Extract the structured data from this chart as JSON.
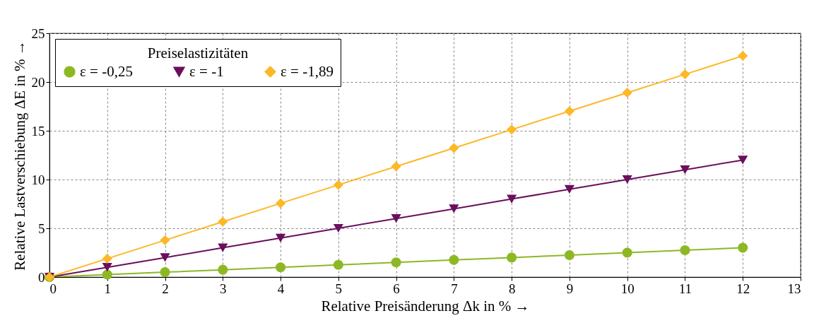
{
  "chart_data": {
    "type": "line",
    "xlabel": "Relative Preisänderung Δk in % →",
    "ylabel": "Relative Lastverschiebung ΔE in % →",
    "legend_title": "Preiselastizitäten",
    "x": [
      0,
      1,
      2,
      3,
      4,
      5,
      6,
      7,
      8,
      9,
      10,
      11,
      12
    ],
    "series": [
      {
        "name": "ε = -0,25",
        "color": "#8db824",
        "marker": "circle",
        "values": [
          0,
          0.25,
          0.5,
          0.75,
          1,
          1.25,
          1.5,
          1.75,
          2,
          2.25,
          2.5,
          2.75,
          3
        ]
      },
      {
        "name": "ε = -1",
        "color": "#6b0f5c",
        "marker": "triangle",
        "values": [
          0,
          1,
          2,
          3,
          4,
          5,
          6,
          7,
          8,
          9,
          10,
          11,
          12
        ]
      },
      {
        "name": "ε = -1,89",
        "color": "#fdb827",
        "marker": "diamond",
        "values": [
          0,
          1.89,
          3.78,
          5.67,
          7.56,
          9.45,
          11.34,
          13.23,
          15.12,
          17.01,
          18.9,
          20.79,
          22.68
        ]
      }
    ],
    "xlim": [
      0,
      13
    ],
    "xticks": [
      0,
      1,
      2,
      3,
      4,
      5,
      6,
      7,
      8,
      9,
      10,
      11,
      12,
      13
    ],
    "ylim": [
      0,
      25
    ],
    "yticks": [
      0,
      5,
      10,
      15,
      20,
      25
    ],
    "grid": true,
    "legend": "top left",
    "line_style": "solid"
  }
}
